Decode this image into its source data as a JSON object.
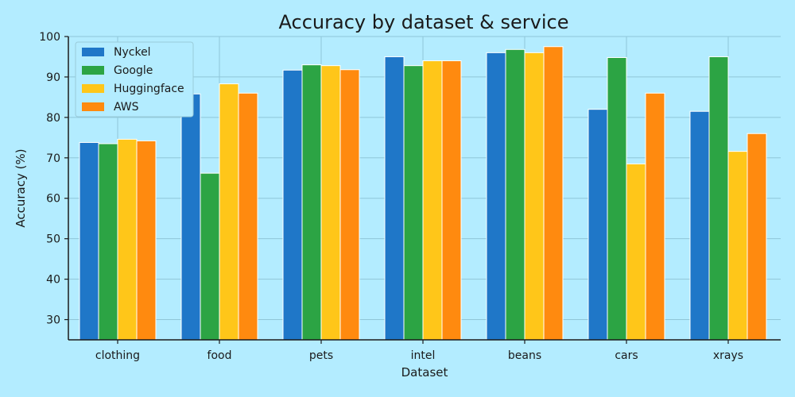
{
  "chart_data": {
    "type": "bar",
    "title": "Accuracy by dataset & service",
    "xlabel": "Dataset",
    "ylabel": "Accuracy (%)",
    "ylim": [
      25,
      100
    ],
    "yticks": [
      30,
      40,
      50,
      60,
      70,
      80,
      90,
      100
    ],
    "grid": true,
    "legend_position": "top-left",
    "categories": [
      "clothing",
      "food",
      "pets",
      "intel",
      "beans",
      "cars",
      "xrays"
    ],
    "series": [
      {
        "name": "Nyckel",
        "color": "#1f77c8",
        "values": [
          73.8,
          85.8,
          91.7,
          95.0,
          96.0,
          82.0,
          81.5
        ]
      },
      {
        "name": "Google",
        "color": "#2ca444",
        "values": [
          73.5,
          66.2,
          93.0,
          92.8,
          96.8,
          94.8,
          95.0
        ]
      },
      {
        "name": "Huggingface",
        "color": "#ffc619",
        "values": [
          74.6,
          88.3,
          92.8,
          94.0,
          96.0,
          68.5,
          71.6
        ]
      },
      {
        "name": "AWS",
        "color": "#ff8a0f",
        "values": [
          74.2,
          86.0,
          91.8,
          94.0,
          97.5,
          86.0,
          76.0
        ]
      }
    ]
  }
}
